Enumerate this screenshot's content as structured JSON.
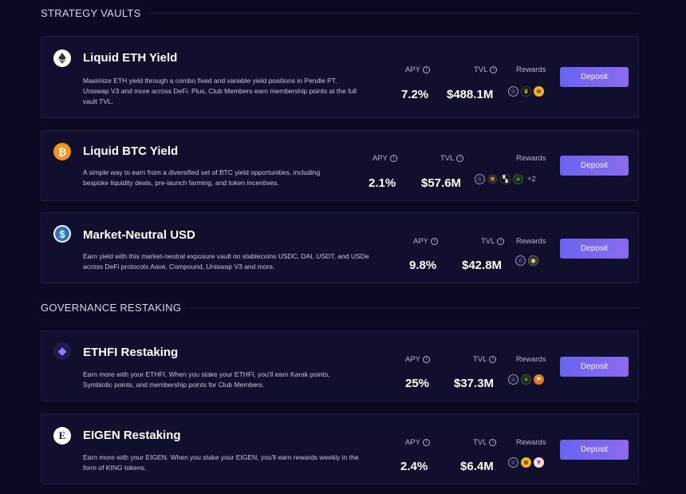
{
  "sections": {
    "strategy": "STRATEGY VAULTS",
    "governance": "GOVERNANCE RESTAKING"
  },
  "labels": {
    "apy": "APY",
    "tvl": "TVL",
    "rewards": "Rewards",
    "deposit": "Deposit"
  },
  "vaults": [
    {
      "name": "Liquid ETH Yield",
      "icon": "ethereum-icon",
      "description": "Maximize ETH yield through a combo fixed and variable yield positions in Pendle PT, Uniswap V3 and more across DeFi. Plus, Club Members earn membership points at the full vault TVL.",
      "apy": "7.2%",
      "tvl": "$488.1M",
      "rewards": [
        "star-icon",
        "crown-icon",
        "king-icon"
      ]
    },
    {
      "name": "Liquid BTC Yield",
      "icon": "bitcoin-icon",
      "description": "A simple way to earn from a diversified set of BTC yield opportunities, including bespoke liquidity deals, pre-launch farming, and token incentives.",
      "apy": "2.1%",
      "tvl": "$57.6M",
      "rewards": [
        "star-icon",
        "multi-icon",
        "square-icon",
        "symbiotic-icon"
      ],
      "more": "+2"
    },
    {
      "name": "Market-Neutral USD",
      "icon": "usdc-icon",
      "description": "Earn yield with this market-neutral exposure vault on stablecoins USDC, DAI, USDT, and USDe across DeFi protocols Aave, Compound, Uniswap V3 and more.",
      "apy": "9.8%",
      "tvl": "$42.8M",
      "rewards": [
        "star-icon",
        "ethena-icon"
      ]
    },
    {
      "name": "ETHFI Restaking",
      "icon": "ethfi-icon",
      "description": "Earn more with your ETHFI. When you stake your ETHFI, you'll earn Karak points, Symbiotic points, and membership points for Club Members.",
      "apy": "25%",
      "tvl": "$37.3M",
      "rewards": [
        "star-icon",
        "symbiotic-icon",
        "karak-icon"
      ]
    },
    {
      "name": "EIGEN Restaking",
      "icon": "eigen-icon",
      "description": "Earn more with your EIGEN. When you stake your EIGEN, you'll earn rewards weekly in the form of KING tokens.",
      "apy": "2.4%",
      "tvl": "$6.4M",
      "rewards": [
        "star-icon",
        "king-icon",
        "fox-icon"
      ]
    }
  ]
}
